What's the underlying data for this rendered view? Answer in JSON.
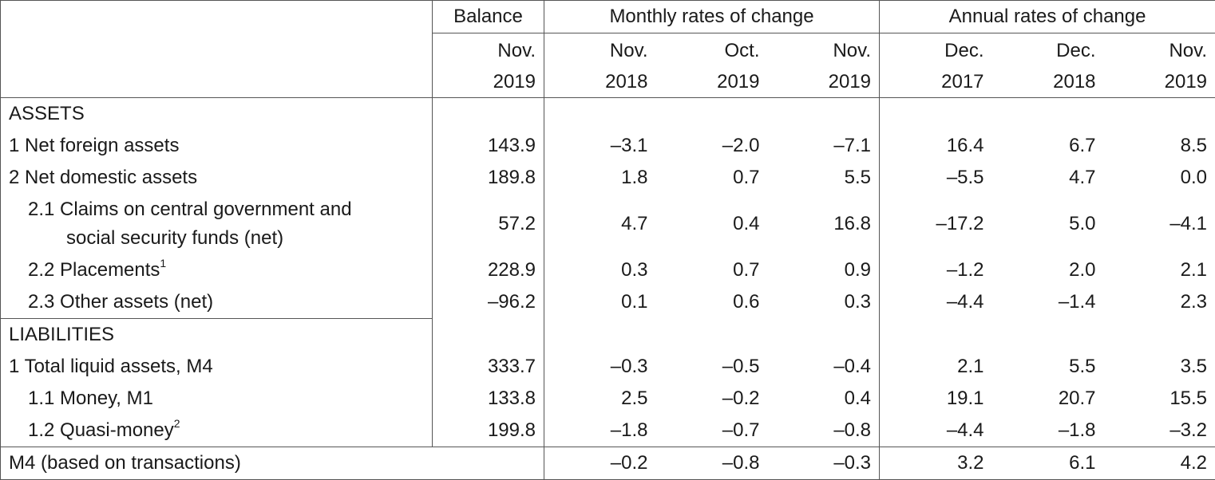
{
  "header": {
    "balance": "Balance",
    "monthly": "Monthly rates of change",
    "annual": "Annual rates of change",
    "periods": [
      [
        "Nov.",
        "2019"
      ],
      [
        "Nov.",
        "2018"
      ],
      [
        "Oct.",
        "2019"
      ],
      [
        "Nov.",
        "2019"
      ],
      [
        "Dec.",
        "2017"
      ],
      [
        "Dec.",
        "2018"
      ],
      [
        "Nov.",
        "2019"
      ]
    ]
  },
  "assets_label": "ASSETS",
  "liabilities_label": "LIABILITIES",
  "rows": {
    "nfa": {
      "label": "1 Net foreign assets",
      "values": [
        "143.9",
        "–3.1",
        "–2.0",
        "–7.1",
        "16.4",
        "6.7",
        "8.5"
      ]
    },
    "nda": {
      "label": "2 Net domestic assets",
      "values": [
        "189.8",
        "1.8",
        "0.7",
        "5.5",
        "–5.5",
        "4.7",
        "0.0"
      ]
    },
    "claims": {
      "label_line1": "2.1 Claims on central government and",
      "label_line2": "social security funds (net)",
      "values": [
        "57.2",
        "4.7",
        "0.4",
        "16.8",
        "–17.2",
        "5.0",
        "–4.1"
      ]
    },
    "placements": {
      "label": "2.2 Placements",
      "note": "1",
      "values": [
        "228.9",
        "0.3",
        "0.7",
        "0.9",
        "–1.2",
        "2.0",
        "2.1"
      ]
    },
    "other": {
      "label": "2.3 Other assets (net)",
      "values": [
        "–96.2",
        "0.1",
        "0.6",
        "0.3",
        "–4.4",
        "–1.4",
        "2.3"
      ]
    },
    "tla": {
      "label": "1 Total liquid assets, M4",
      "values": [
        "333.7",
        "–0.3",
        "–0.5",
        "–0.4",
        "2.1",
        "5.5",
        "3.5"
      ]
    },
    "m1": {
      "label": "1.1 Money, M1",
      "values": [
        "133.8",
        "2.5",
        "–0.2",
        "0.4",
        "19.1",
        "20.7",
        "15.5"
      ]
    },
    "quasi": {
      "label": "1.2 Quasi-money",
      "note": "2",
      "values": [
        "199.8",
        "–1.8",
        "–0.7",
        "–0.8",
        "–4.4",
        "–1.8",
        "–3.2"
      ]
    },
    "m4tx": {
      "label": "M4 (based on transactions)",
      "values": [
        "–0.2",
        "–0.8",
        "–0.3",
        "3.2",
        "6.1",
        "4.2"
      ]
    }
  }
}
